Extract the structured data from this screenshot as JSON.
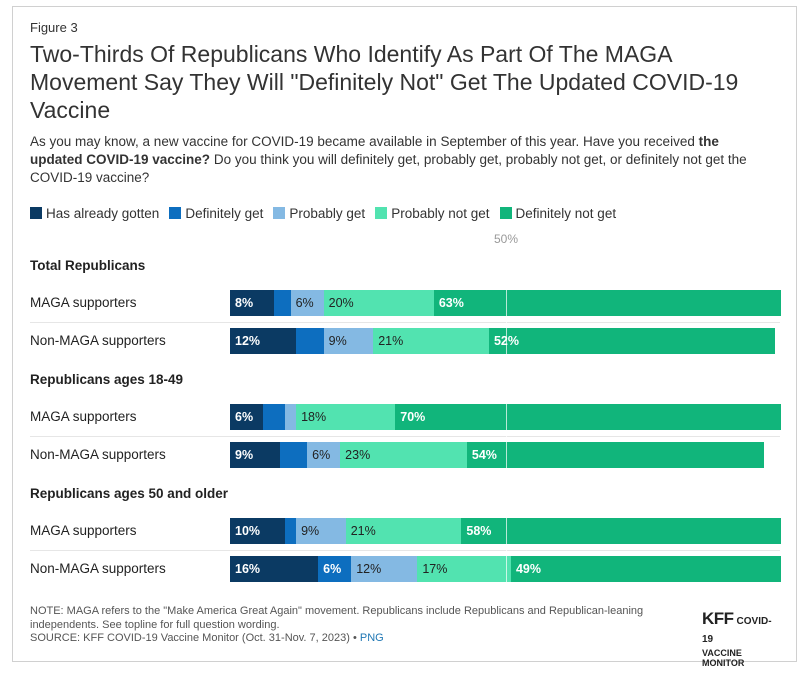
{
  "figure_label": "Figure 3",
  "title": "Two-Thirds Of Republicans Who Identify As Part Of The MAGA Movement Say They Will \"Definitely Not\" Get The Updated COVID-19 Vaccine",
  "subtitle": {
    "part1": "As you may know, a new vaccine for COVID-19 became available in September of this year. Have you received ",
    "bold": "the updated COVID-19 vaccine?",
    "part2": " Do you think you will definitely get, probably get, probably not get, or definitely not get the COVID-19 vaccine?"
  },
  "colors": {
    "has_already_gotten": "#0b3a63",
    "definitely_get": "#0d6ebf",
    "probably_get": "#84b9e3",
    "probably_not_get": "#52e3b0",
    "definitely_not_get": "#11b57b"
  },
  "note": "NOTE: MAGA refers to the \"Make America Great Again\" movement. Republicans include Republicans and Republican-leaning independents. See topline for full question wording.",
  "source": {
    "text": "SOURCE: KFF COVID-19 Vaccine Monitor (Oct. 31-Nov. 7, 2023) • ",
    "link": "PNG"
  },
  "logo": {
    "main": "KFF",
    "sub1": "COVID-19",
    "sub2": "VACCINE MONITOR"
  },
  "chart_data": {
    "type": "bar",
    "orientation": "horizontal",
    "stacked": true,
    "reference_line": {
      "value": 50,
      "label": "50%"
    },
    "legend_placement": "top",
    "series": [
      {
        "name": "Has already gotten",
        "color_key": "has_already_gotten"
      },
      {
        "name": "Definitely get",
        "color_key": "definitely_get"
      },
      {
        "name": "Probably get",
        "color_key": "probably_get"
      },
      {
        "name": "Probably not get",
        "color_key": "probably_not_get"
      },
      {
        "name": "Definitely not get",
        "color_key": "definitely_not_get"
      }
    ],
    "groups": [
      {
        "name": "Total Republicans",
        "rows": [
          {
            "label": "MAGA supporters",
            "values": [
              8,
              3,
              6,
              20,
              63
            ],
            "labels": [
              "8%",
              "",
              "6%",
              "20%",
              "63%"
            ]
          },
          {
            "label": "Non-MAGA supporters",
            "values": [
              12,
              5,
              9,
              21,
              52
            ],
            "labels": [
              "12%",
              "",
              "9%",
              "21%",
              "52%"
            ]
          }
        ]
      },
      {
        "name": "Republicans ages 18-49",
        "rows": [
          {
            "label": "MAGA supporters",
            "values": [
              6,
              4,
              2,
              18,
              70
            ],
            "labels": [
              "6%",
              "",
              "",
              "18%",
              "70%"
            ]
          },
          {
            "label": "Non-MAGA supporters",
            "values": [
              9,
              5,
              6,
              23,
              54
            ],
            "labels": [
              "9%",
              "",
              "6%",
              "23%",
              "54%"
            ]
          }
        ]
      },
      {
        "name": "Republicans ages 50 and older",
        "rows": [
          {
            "label": "MAGA supporters",
            "values": [
              10,
              2,
              9,
              21,
              58
            ],
            "labels": [
              "10%",
              "",
              "9%",
              "21%",
              "58%"
            ]
          },
          {
            "label": "Non-MAGA supporters",
            "values": [
              16,
              6,
              12,
              17,
              49
            ],
            "labels": [
              "16%",
              "6%",
              "12%",
              "17%",
              "49%"
            ]
          }
        ]
      }
    ]
  }
}
